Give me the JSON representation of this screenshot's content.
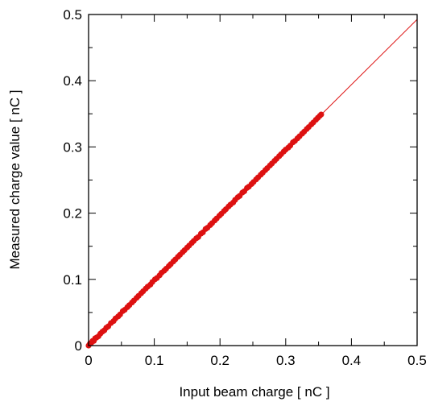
{
  "chart_data": {
    "type": "scatter",
    "title": "",
    "xlabel": "Input beam charge  [ nC ]",
    "ylabel": "Measured charge value  [ nC ]",
    "xlim": [
      0,
      0.5
    ],
    "ylim": [
      0,
      0.5
    ],
    "xticks": [
      "0",
      "0.1",
      "0.2",
      "0.3",
      "0.4",
      "0.5"
    ],
    "yticks": [
      "0",
      "0.1",
      "0.2",
      "0.3",
      "0.4",
      "0.5"
    ],
    "grid": false,
    "legend": "none",
    "color": "#dd1111",
    "fit_line": {
      "slope": 0.985,
      "intercept": 0.0,
      "x_range": [
        0,
        0.5
      ]
    },
    "series": [
      {
        "x": [
          0.0,
          0.002,
          0.004,
          0.006,
          0.008,
          0.01,
          0.012,
          0.015,
          0.018,
          0.021,
          0.024,
          0.027,
          0.03,
          0.034,
          0.038,
          0.041,
          0.045,
          0.048,
          0.052,
          0.055,
          0.059,
          0.062,
          0.066,
          0.069,
          0.073,
          0.076,
          0.08,
          0.083,
          0.087,
          0.09,
          0.094,
          0.097,
          0.101,
          0.104,
          0.108,
          0.111,
          0.115,
          0.118,
          0.122,
          0.125,
          0.129,
          0.132,
          0.136,
          0.139,
          0.143,
          0.146,
          0.15,
          0.153,
          0.157,
          0.16,
          0.164,
          0.167,
          0.171,
          0.174,
          0.178,
          0.181,
          0.185,
          0.188,
          0.192,
          0.195,
          0.199,
          0.202,
          0.206,
          0.209,
          0.213,
          0.216,
          0.22,
          0.223,
          0.227,
          0.23,
          0.234,
          0.237,
          0.241,
          0.244,
          0.248,
          0.251,
          0.255,
          0.258,
          0.262,
          0.265,
          0.269,
          0.272,
          0.276,
          0.279,
          0.283,
          0.286,
          0.29,
          0.293,
          0.297,
          0.3,
          0.304,
          0.307,
          0.311,
          0.314,
          0.318,
          0.321,
          0.325,
          0.328,
          0.332,
          0.335,
          0.339,
          0.342,
          0.346,
          0.349,
          0.352,
          0.354
        ],
        "y": [
          0.0,
          0.003,
          0.004,
          0.007,
          0.007,
          0.011,
          0.012,
          0.014,
          0.018,
          0.021,
          0.023,
          0.027,
          0.029,
          0.034,
          0.037,
          0.041,
          0.044,
          0.047,
          0.052,
          0.054,
          0.058,
          0.061,
          0.065,
          0.068,
          0.072,
          0.075,
          0.079,
          0.082,
          0.086,
          0.089,
          0.092,
          0.096,
          0.1,
          0.102,
          0.106,
          0.11,
          0.113,
          0.116,
          0.12,
          0.123,
          0.127,
          0.13,
          0.134,
          0.137,
          0.141,
          0.144,
          0.148,
          0.151,
          0.155,
          0.158,
          0.162,
          0.164,
          0.169,
          0.171,
          0.176,
          0.178,
          0.182,
          0.185,
          0.189,
          0.192,
          0.196,
          0.199,
          0.203,
          0.206,
          0.21,
          0.213,
          0.216,
          0.22,
          0.224,
          0.226,
          0.231,
          0.233,
          0.238,
          0.24,
          0.244,
          0.247,
          0.251,
          0.254,
          0.258,
          0.261,
          0.265,
          0.268,
          0.272,
          0.275,
          0.279,
          0.282,
          0.286,
          0.289,
          0.293,
          0.296,
          0.299,
          0.302,
          0.307,
          0.309,
          0.313,
          0.316,
          0.32,
          0.323,
          0.327,
          0.33,
          0.334,
          0.337,
          0.341,
          0.344,
          0.347,
          0.349
        ]
      }
    ]
  }
}
